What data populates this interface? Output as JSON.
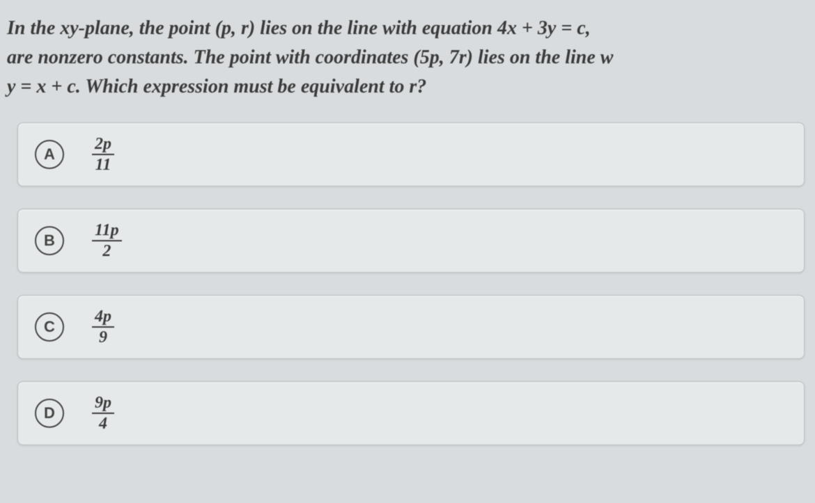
{
  "question": {
    "line1": "In the xy-plane, the point (p, r) lies on the line with equation 4x + 3y = c,",
    "line2": "are nonzero constants. The point with coordinates (5p, 7r) lies on the line w",
    "line3": "y = x + c. Which expression must be equivalent to r?"
  },
  "options": [
    {
      "letter": "A",
      "numerator": "2p",
      "denominator": "11"
    },
    {
      "letter": "B",
      "numerator": "11p",
      "denominator": "2"
    },
    {
      "letter": "C",
      "numerator": "4p",
      "denominator": "9"
    },
    {
      "letter": "D",
      "numerator": "9p",
      "denominator": "4"
    }
  ],
  "styling": {
    "background_color": "#d8dcde",
    "option_bg": "#e6e9ea",
    "option_border": "#b8bcbe",
    "text_color": "#3a3a3a",
    "circle_color": "#444444",
    "question_fontsize": 28,
    "option_letter_fontsize": 22,
    "fraction_fontsize": 24
  }
}
